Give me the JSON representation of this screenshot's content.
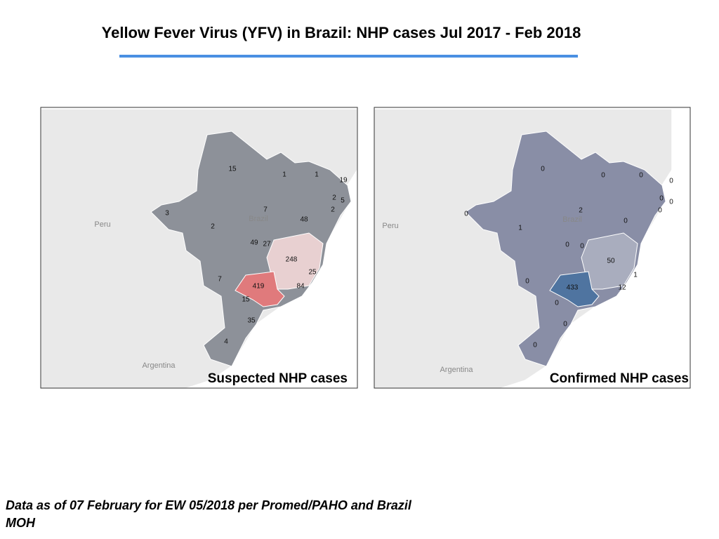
{
  "title": "Yellow Fever Virus (YFV) in Brazil: NHP cases Jul 2017 - Feb 2018",
  "maps": [
    {
      "caption": "Suspected NHP cases",
      "places": [
        "Peru",
        "Brazil",
        "Argentina"
      ],
      "labels": [
        15,
        1,
        1,
        19,
        2,
        5,
        2,
        3,
        7,
        48,
        2,
        49,
        27,
        248,
        25,
        7,
        419,
        84,
        15,
        35,
        4
      ]
    },
    {
      "caption": "Confirmed NHP cases",
      "places": [
        "Peru",
        "Brazil",
        "Argentina"
      ],
      "labels": [
        0,
        0,
        0,
        0,
        0,
        0,
        0,
        0,
        2,
        0,
        1,
        0,
        0,
        50,
        1,
        0,
        433,
        12,
        0,
        0,
        0
      ]
    }
  ],
  "footnote": "Data as of 07 February for EW 05/2018 per Promed/PAHO and Brazil MOH"
}
